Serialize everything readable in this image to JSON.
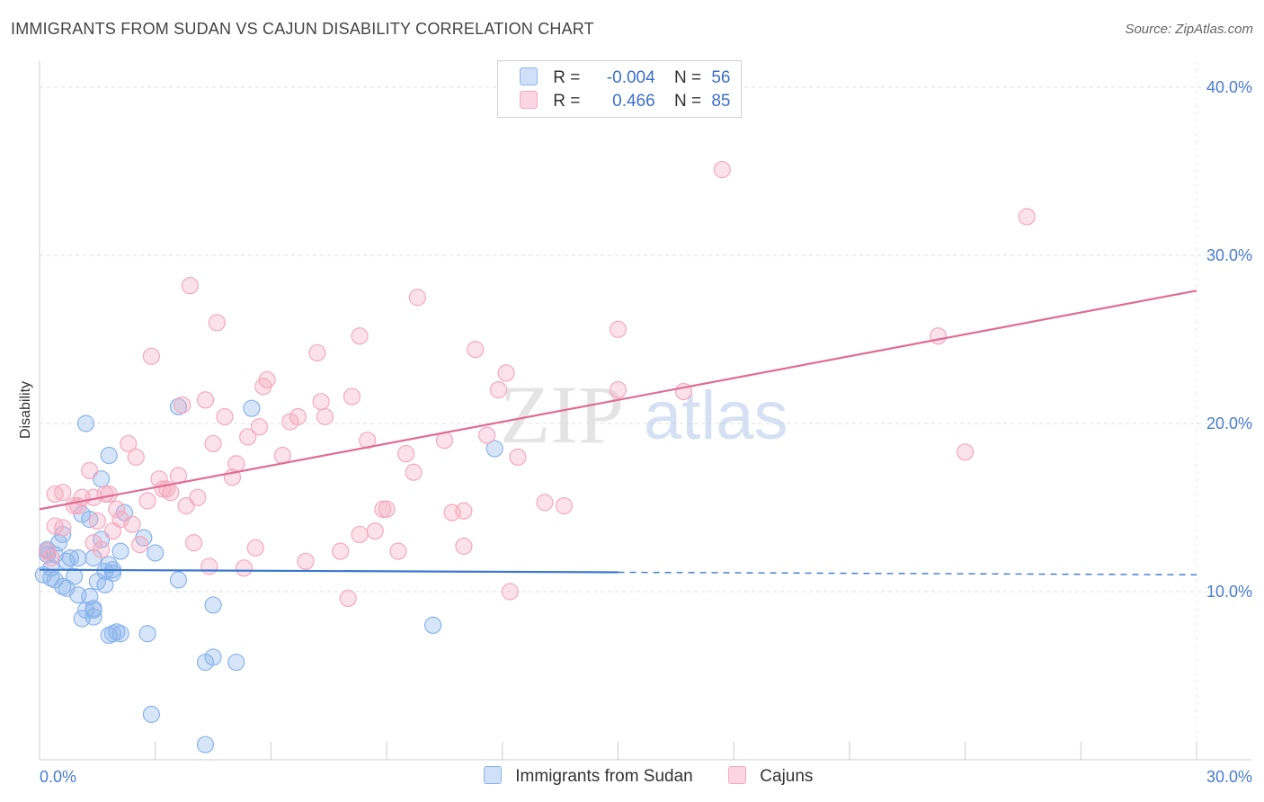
{
  "header": {
    "title": "IMMIGRANTS FROM SUDAN VS CAJUN DISABILITY CORRELATION CHART",
    "source": "Source: ZipAtlas.com"
  },
  "watermark": {
    "zip": "ZIP",
    "atlas": "atlas"
  },
  "legend": {
    "sudan": {
      "r_label": "R =",
      "r_value": "-0.004",
      "n_label": "N =",
      "n_value": "56",
      "color": "#8ab4ec"
    },
    "cajun": {
      "r_label": "R =",
      "r_value": "0.466",
      "n_label": "N =",
      "n_value": "85",
      "color": "#f4a9bf"
    }
  },
  "bottom_legend": {
    "sudan_label": "Immigrants from Sudan",
    "cajun_label": "Cajuns"
  },
  "chart_data": {
    "type": "scatter",
    "title": "IMMIGRANTS FROM SUDAN VS CAJUN DISABILITY CORRELATION CHART",
    "xlabel": "",
    "ylabel": "Disability",
    "xlim": [
      0,
      30
    ],
    "ylim": [
      0,
      40
    ],
    "x_tick_labels": [
      "0.0%",
      "30.0%"
    ],
    "y_ticks": [
      10,
      20,
      30,
      40
    ],
    "y_tick_labels": [
      "10.0%",
      "20.0%",
      "30.0%",
      "40.0%"
    ],
    "grid": true,
    "legend_position": "top-center",
    "series": [
      {
        "name": "Immigrants from Sudan",
        "color": "#8ab4ec",
        "line_color": "#3a78d0",
        "trend": {
          "x_start": 0,
          "y_start": 11.3,
          "x_end": 30,
          "y_end": 11.0,
          "solid_until_x": 15
        },
        "points": [
          [
            0.1,
            11.0
          ],
          [
            0.2,
            12.5
          ],
          [
            0.3,
            11.4
          ],
          [
            0.3,
            10.8
          ],
          [
            0.4,
            10.7
          ],
          [
            0.2,
            12.2
          ],
          [
            0.5,
            12.9
          ],
          [
            0.6,
            13.4
          ],
          [
            0.6,
            10.3
          ],
          [
            0.7,
            10.2
          ],
          [
            0.8,
            12.0
          ],
          [
            0.7,
            11.8
          ],
          [
            0.9,
            10.9
          ],
          [
            1.0,
            9.8
          ],
          [
            1.0,
            12.0
          ],
          [
            1.1,
            8.4
          ],
          [
            1.1,
            14.6
          ],
          [
            1.3,
            9.7
          ],
          [
            1.2,
            8.9
          ],
          [
            1.3,
            14.3
          ],
          [
            1.4,
            8.9
          ],
          [
            1.4,
            8.5
          ],
          [
            1.4,
            9.0
          ],
          [
            1.5,
            10.6
          ],
          [
            1.6,
            13.1
          ],
          [
            1.6,
            16.7
          ],
          [
            1.7,
            11.2
          ],
          [
            1.7,
            10.4
          ],
          [
            1.8,
            7.4
          ],
          [
            1.8,
            11.6
          ],
          [
            1.9,
            11.1
          ],
          [
            1.9,
            11.3
          ],
          [
            1.8,
            18.1
          ],
          [
            1.9,
            7.5
          ],
          [
            2.0,
            7.6
          ],
          [
            2.1,
            7.5
          ],
          [
            2.1,
            12.4
          ],
          [
            2.2,
            14.7
          ],
          [
            1.2,
            20.0
          ],
          [
            2.7,
            13.2
          ],
          [
            2.8,
            7.5
          ],
          [
            3.0,
            12.3
          ],
          [
            2.9,
            2.7
          ],
          [
            3.6,
            10.7
          ],
          [
            3.6,
            21.0
          ],
          [
            4.3,
            5.8
          ],
          [
            4.5,
            6.1
          ],
          [
            4.5,
            9.2
          ],
          [
            5.1,
            5.8
          ],
          [
            5.5,
            20.9
          ],
          [
            10.2,
            8.0
          ],
          [
            11.8,
            18.5
          ],
          [
            0.4,
            12.2
          ],
          [
            0.2,
            12.4
          ],
          [
            4.3,
            0.9
          ],
          [
            1.4,
            12.0
          ]
        ]
      },
      {
        "name": "Cajuns",
        "color": "#f4a9bf",
        "line_color": "#e06c94",
        "trend": {
          "x_start": 0,
          "y_start": 14.9,
          "x_end": 30,
          "y_end": 27.9,
          "solid_until_x": 30
        },
        "points": [
          [
            0.2,
            12.4
          ],
          [
            0.3,
            12.0
          ],
          [
            0.4,
            13.9
          ],
          [
            0.4,
            15.8
          ],
          [
            0.6,
            13.8
          ],
          [
            0.6,
            15.9
          ],
          [
            0.9,
            15.1
          ],
          [
            1.0,
            15.1
          ],
          [
            1.1,
            15.6
          ],
          [
            1.3,
            17.2
          ],
          [
            1.4,
            15.6
          ],
          [
            1.4,
            12.9
          ],
          [
            1.5,
            14.2
          ],
          [
            1.6,
            12.5
          ],
          [
            1.7,
            15.8
          ],
          [
            1.8,
            15.8
          ],
          [
            1.9,
            13.6
          ],
          [
            2.0,
            14.9
          ],
          [
            2.1,
            14.3
          ],
          [
            2.3,
            18.8
          ],
          [
            2.4,
            14.0
          ],
          [
            2.5,
            18.0
          ],
          [
            2.6,
            12.8
          ],
          [
            2.8,
            15.4
          ],
          [
            2.9,
            24.0
          ],
          [
            3.1,
            16.7
          ],
          [
            3.2,
            16.1
          ],
          [
            3.3,
            16.1
          ],
          [
            3.4,
            15.9
          ],
          [
            3.6,
            16.9
          ],
          [
            3.7,
            21.1
          ],
          [
            3.8,
            15.1
          ],
          [
            3.9,
            28.2
          ],
          [
            4.0,
            12.9
          ],
          [
            4.1,
            15.6
          ],
          [
            4.3,
            21.4
          ],
          [
            4.4,
            11.5
          ],
          [
            4.5,
            18.8
          ],
          [
            4.6,
            26.0
          ],
          [
            4.8,
            20.4
          ],
          [
            5.0,
            16.8
          ],
          [
            5.1,
            17.6
          ],
          [
            5.3,
            11.4
          ],
          [
            5.4,
            19.2
          ],
          [
            5.6,
            12.6
          ],
          [
            5.7,
            19.8
          ],
          [
            5.8,
            22.2
          ],
          [
            5.9,
            22.6
          ],
          [
            6.3,
            18.1
          ],
          [
            6.5,
            20.1
          ],
          [
            6.7,
            20.4
          ],
          [
            6.9,
            11.8
          ],
          [
            7.2,
            24.2
          ],
          [
            7.3,
            21.3
          ],
          [
            7.4,
            20.4
          ],
          [
            7.8,
            12.4
          ],
          [
            8.0,
            9.6
          ],
          [
            8.1,
            21.6
          ],
          [
            8.3,
            13.4
          ],
          [
            8.3,
            25.2
          ],
          [
            8.5,
            19.0
          ],
          [
            8.7,
            13.6
          ],
          [
            8.9,
            14.9
          ],
          [
            9.0,
            14.9
          ],
          [
            9.3,
            12.4
          ],
          [
            9.5,
            18.2
          ],
          [
            9.7,
            17.1
          ],
          [
            9.8,
            27.5
          ],
          [
            10.5,
            19.0
          ],
          [
            10.7,
            14.7
          ],
          [
            11.0,
            14.8
          ],
          [
            11.0,
            12.7
          ],
          [
            11.3,
            24.4
          ],
          [
            11.6,
            19.3
          ],
          [
            11.9,
            22.0
          ],
          [
            12.1,
            23.0
          ],
          [
            12.2,
            10.0
          ],
          [
            12.4,
            18.0
          ],
          [
            13.1,
            15.3
          ],
          [
            13.6,
            15.1
          ],
          [
            15.0,
            25.6
          ],
          [
            15.0,
            22.0
          ],
          [
            16.7,
            21.9
          ],
          [
            17.7,
            35.1
          ],
          [
            24.0,
            18.3
          ]
        ]
      }
    ],
    "extra_points_cajun": [
      [
        23.3,
        25.2
      ],
      [
        25.6,
        32.3
      ]
    ]
  }
}
